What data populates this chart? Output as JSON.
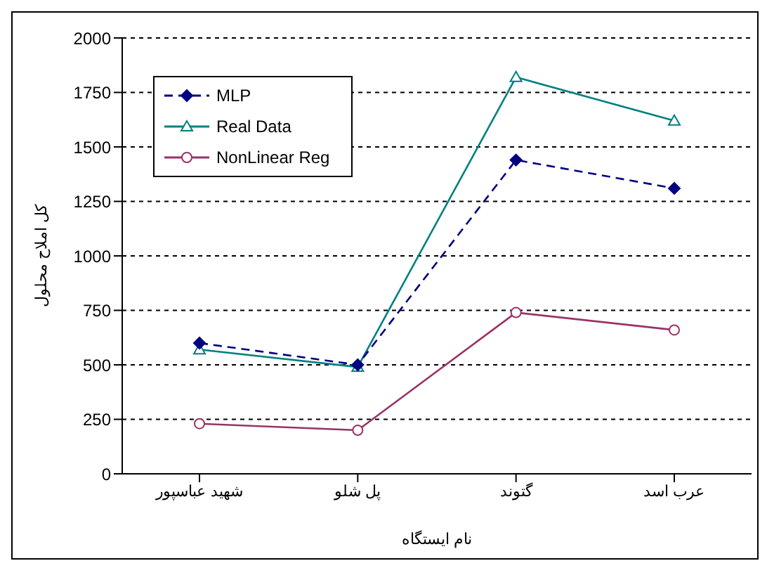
{
  "chart_data": {
    "type": "line",
    "categories": [
      "شهید عباسپور",
      "پل شلو",
      "گتوند",
      "عرب اسد"
    ],
    "series": [
      {
        "name": "MLP",
        "color": "#000080",
        "values": [
          600,
          500,
          1440,
          1310
        ],
        "marker": "diamond",
        "line_style": "dashed"
      },
      {
        "name": "Real Data",
        "color": "#008080",
        "values": [
          570,
          490,
          1820,
          1620
        ],
        "marker": "triangle",
        "line_style": "solid"
      },
      {
        "name": "NonLinear Reg",
        "color": "#993366",
        "values": [
          230,
          200,
          740,
          660
        ],
        "marker": "circle",
        "line_style": "solid"
      }
    ],
    "xlabel": "نام ایستگاه",
    "ylabel": "کل املاح محلول",
    "ylim": [
      0,
      2000
    ],
    "yticks": [
      0,
      250,
      500,
      750,
      1000,
      1250,
      1500,
      1750,
      2000
    ],
    "grid": "y",
    "legend": "top left"
  }
}
